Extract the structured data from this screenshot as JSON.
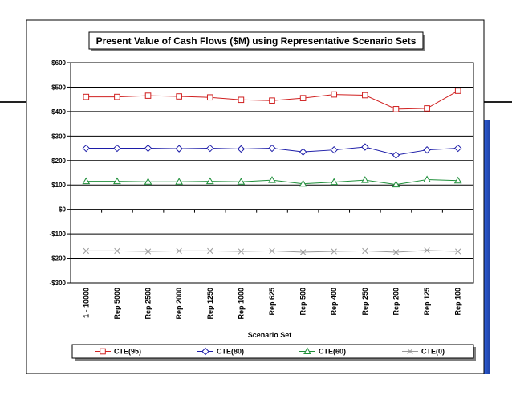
{
  "chart_data": {
    "type": "line",
    "title": "Present Value of Cash Flows ($M) using Representative Scenario Sets",
    "xlabel": "Scenario Set",
    "ylabel": "",
    "ylim": [
      -300,
      600
    ],
    "yticks": [
      600,
      500,
      400,
      300,
      200,
      100,
      0,
      -100,
      -200,
      -300
    ],
    "ytick_labels": [
      "$600",
      "$500",
      "$400",
      "$300",
      "$200",
      "$100",
      "$0",
      "-$100",
      "-$200",
      "-$300"
    ],
    "categories": [
      "1 - 10000",
      "Rep 5000",
      "Rep 2500",
      "Rep 2000",
      "Rep 1250",
      "Rep 1000",
      "Rep 625",
      "Rep 500",
      "Rep 400",
      "Rep 250",
      "Rep 200",
      "Rep 125",
      "Rep 100"
    ],
    "grid": true,
    "legend_position": "bottom",
    "series": [
      {
        "name": "CTE(95)",
        "color": "#d02020",
        "marker": "square",
        "values": [
          460,
          460,
          465,
          462,
          458,
          448,
          445,
          455,
          470,
          467,
          410,
          413,
          485
        ]
      },
      {
        "name": "CTE(80)",
        "color": "#1c1ca8",
        "marker": "diamond",
        "values": [
          250,
          250,
          250,
          248,
          250,
          247,
          250,
          235,
          243,
          255,
          222,
          243,
          250
        ]
      },
      {
        "name": "CTE(60)",
        "color": "#1f8f3a",
        "marker": "triangle",
        "values": [
          115,
          115,
          113,
          113,
          115,
          113,
          120,
          105,
          112,
          120,
          102,
          122,
          118
        ]
      },
      {
        "name": "CTE(0)",
        "color": "#9a9a9a",
        "marker": "x",
        "values": [
          -170,
          -170,
          -172,
          -170,
          -170,
          -172,
          -170,
          -175,
          -172,
          -170,
          -175,
          -168,
          -172
        ]
      }
    ]
  }
}
